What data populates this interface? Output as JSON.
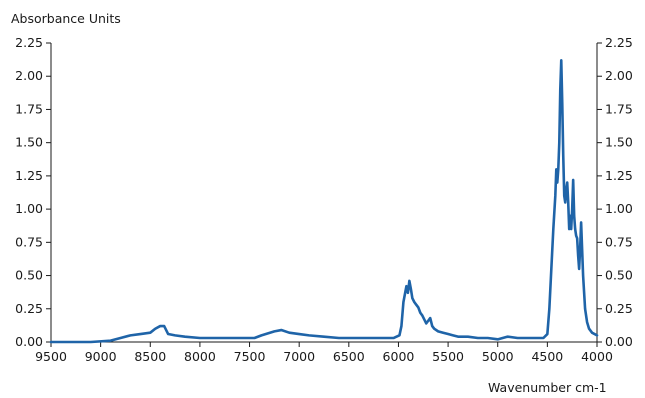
{
  "chart_data": {
    "type": "line",
    "title": "",
    "ylabel": "Absorbance Units",
    "xlabel": "Wavenumber cm-1",
    "xlim": [
      9500,
      4000
    ],
    "ylim": [
      0,
      2.25
    ],
    "x_reversed": true,
    "grid": false,
    "legend": "none",
    "x_ticks": [
      9500,
      9000,
      8500,
      8000,
      7500,
      7000,
      6500,
      6000,
      5500,
      5000,
      4500,
      4000
    ],
    "x_tick_labels": [
      "9500",
      "9000",
      "8500",
      "8000",
      "7500",
      "7000",
      "6500",
      "6000",
      "5500",
      "5000",
      "4500",
      "4000"
    ],
    "y_ticks": [
      0,
      0.25,
      0.5,
      0.75,
      1.0,
      1.25,
      1.5,
      1.75,
      2.0,
      2.25
    ],
    "y_tick_labels": [
      "0.00",
      "0.25",
      "0.50",
      "0.75",
      "1.00",
      "1.25",
      "1.50",
      "1.75",
      "2.00",
      "2.25"
    ],
    "series": [
      {
        "color": "#1f64a8",
        "points": [
          [
            9500,
            0.0
          ],
          [
            9300,
            0.0
          ],
          [
            9100,
            0.0
          ],
          [
            8900,
            0.01
          ],
          [
            8800,
            0.03
          ],
          [
            8700,
            0.05
          ],
          [
            8600,
            0.06
          ],
          [
            8500,
            0.07
          ],
          [
            8450,
            0.1
          ],
          [
            8400,
            0.12
          ],
          [
            8360,
            0.12
          ],
          [
            8320,
            0.06
          ],
          [
            8250,
            0.05
          ],
          [
            8150,
            0.04
          ],
          [
            8000,
            0.03
          ],
          [
            7800,
            0.03
          ],
          [
            7600,
            0.03
          ],
          [
            7450,
            0.03
          ],
          [
            7380,
            0.05
          ],
          [
            7250,
            0.08
          ],
          [
            7180,
            0.09
          ],
          [
            7100,
            0.07
          ],
          [
            7000,
            0.06
          ],
          [
            6900,
            0.05
          ],
          [
            6750,
            0.04
          ],
          [
            6600,
            0.03
          ],
          [
            6400,
            0.03
          ],
          [
            6200,
            0.03
          ],
          [
            6050,
            0.03
          ],
          [
            5990,
            0.05
          ],
          [
            5970,
            0.12
          ],
          [
            5950,
            0.3
          ],
          [
            5930,
            0.38
          ],
          [
            5920,
            0.42
          ],
          [
            5905,
            0.37
          ],
          [
            5890,
            0.46
          ],
          [
            5875,
            0.4
          ],
          [
            5860,
            0.33
          ],
          [
            5840,
            0.3
          ],
          [
            5820,
            0.28
          ],
          [
            5800,
            0.26
          ],
          [
            5780,
            0.22
          ],
          [
            5760,
            0.2
          ],
          [
            5740,
            0.17
          ],
          [
            5720,
            0.14
          ],
          [
            5700,
            0.16
          ],
          [
            5680,
            0.18
          ],
          [
            5660,
            0.12
          ],
          [
            5640,
            0.1
          ],
          [
            5600,
            0.08
          ],
          [
            5550,
            0.07
          ],
          [
            5500,
            0.06
          ],
          [
            5450,
            0.05
          ],
          [
            5400,
            0.04
          ],
          [
            5300,
            0.04
          ],
          [
            5200,
            0.03
          ],
          [
            5100,
            0.03
          ],
          [
            5000,
            0.02
          ],
          [
            4900,
            0.04
          ],
          [
            4800,
            0.03
          ],
          [
            4700,
            0.03
          ],
          [
            4600,
            0.03
          ],
          [
            4540,
            0.03
          ],
          [
            4500,
            0.06
          ],
          [
            4480,
            0.25
          ],
          [
            4460,
            0.55
          ],
          [
            4440,
            0.85
          ],
          [
            4420,
            1.1
          ],
          [
            4410,
            1.3
          ],
          [
            4400,
            1.2
          ],
          [
            4390,
            1.3
          ],
          [
            4380,
            1.5
          ],
          [
            4370,
            1.9
          ],
          [
            4360,
            2.12
          ],
          [
            4350,
            1.8
          ],
          [
            4340,
            1.4
          ],
          [
            4330,
            1.1
          ],
          [
            4320,
            1.05
          ],
          [
            4310,
            1.15
          ],
          [
            4300,
            1.2
          ],
          [
            4290,
            1.05
          ],
          [
            4280,
            0.85
          ],
          [
            4270,
            0.95
          ],
          [
            4260,
            0.85
          ],
          [
            4250,
            1.0
          ],
          [
            4240,
            1.22
          ],
          [
            4230,
            0.95
          ],
          [
            4220,
            0.85
          ],
          [
            4210,
            0.8
          ],
          [
            4200,
            0.78
          ],
          [
            4190,
            0.65
          ],
          [
            4180,
            0.55
          ],
          [
            4170,
            0.7
          ],
          [
            4160,
            0.9
          ],
          [
            4150,
            0.7
          ],
          [
            4140,
            0.5
          ],
          [
            4120,
            0.25
          ],
          [
            4100,
            0.15
          ],
          [
            4080,
            0.1
          ],
          [
            4050,
            0.07
          ],
          [
            4000,
            0.05
          ]
        ]
      }
    ]
  }
}
